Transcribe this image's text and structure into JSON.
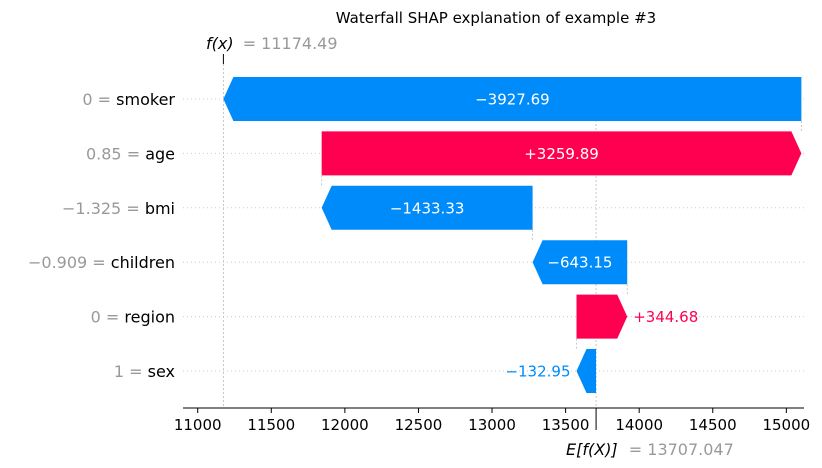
{
  "chart_data": {
    "type": "waterfall",
    "title": "Waterfall SHAP explanation of example #3",
    "xlim": [
      10900,
      15120
    ],
    "x_ticks": [
      11000,
      11500,
      12000,
      12500,
      13000,
      13500,
      14000,
      14500,
      15000
    ],
    "fx": {
      "label": "f(x)",
      "value": 11174.49,
      "text": "= 11174.49"
    },
    "expected": {
      "label": "E[f(X)]",
      "value": 13707.047,
      "text": "= 13707.047"
    },
    "features": [
      {
        "feature_value": "0",
        "feature": "smoker",
        "shap": -3927.69,
        "label": "−3927.69"
      },
      {
        "feature_value": "0.85",
        "feature": "age",
        "shap": 3259.89,
        "label": "+3259.89"
      },
      {
        "feature_value": "−1.325",
        "feature": "bmi",
        "shap": -1433.33,
        "label": "−1433.33"
      },
      {
        "feature_value": "−0.909",
        "feature": "children",
        "shap": -643.15,
        "label": "−643.15"
      },
      {
        "feature_value": "0",
        "feature": "region",
        "shap": 344.68,
        "label": "+344.68"
      },
      {
        "feature_value": "1",
        "feature": "sex",
        "shap": -132.95,
        "label": "−132.95"
      }
    ],
    "colors": {
      "positive": "#ff0051",
      "negative": "#008bfb",
      "muted": "#999999"
    }
  }
}
